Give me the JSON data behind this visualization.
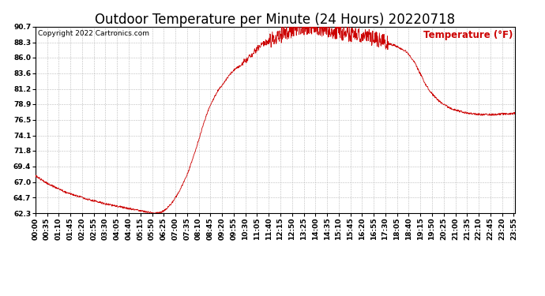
{
  "title": "Outdoor Temperature per Minute (24 Hours) 20220718",
  "copyright_text": "Copyright 2022 Cartronics.com",
  "legend_label": "Temperature (°F)",
  "line_color": "#cc0000",
  "background_color": "#ffffff",
  "plot_bg_color": "#ffffff",
  "grid_color": "#bbbbbb",
  "title_color": "#000000",
  "copyright_color": "#000000",
  "legend_color": "#cc0000",
  "ytick_labels": [
    62.3,
    64.7,
    67.0,
    69.4,
    71.8,
    74.1,
    76.5,
    78.9,
    81.2,
    83.6,
    86.0,
    88.3,
    90.7
  ],
  "ylim": [
    62.3,
    90.7
  ],
  "total_minutes": 1440,
  "xtick_interval": 35,
  "title_fontsize": 12,
  "tick_fontsize": 6.5,
  "legend_fontsize": 8.5,
  "copyright_fontsize": 6.5,
  "keypoints": [
    [
      0,
      68.0
    ],
    [
      30,
      67.0
    ],
    [
      60,
      66.2
    ],
    [
      90,
      65.5
    ],
    [
      120,
      65.0
    ],
    [
      150,
      64.5
    ],
    [
      180,
      64.1
    ],
    [
      210,
      63.7
    ],
    [
      240,
      63.4
    ],
    [
      270,
      63.1
    ],
    [
      300,
      62.8
    ],
    [
      320,
      62.6
    ],
    [
      340,
      62.4
    ],
    [
      350,
      62.35
    ],
    [
      360,
      62.3
    ],
    [
      365,
      62.3
    ],
    [
      370,
      62.35
    ],
    [
      380,
      62.5
    ],
    [
      390,
      62.8
    ],
    [
      400,
      63.3
    ],
    [
      415,
      64.2
    ],
    [
      430,
      65.5
    ],
    [
      445,
      67.0
    ],
    [
      460,
      68.8
    ],
    [
      475,
      71.0
    ],
    [
      490,
      73.5
    ],
    [
      505,
      76.0
    ],
    [
      520,
      78.2
    ],
    [
      535,
      79.8
    ],
    [
      550,
      81.2
    ],
    [
      560,
      81.8
    ],
    [
      570,
      82.5
    ],
    [
      580,
      83.2
    ],
    [
      590,
      83.8
    ],
    [
      600,
      84.3
    ],
    [
      610,
      84.6
    ],
    [
      620,
      85.0
    ],
    [
      630,
      85.5
    ],
    [
      640,
      86.0
    ],
    [
      650,
      86.5
    ],
    [
      660,
      87.0
    ],
    [
      670,
      87.5
    ],
    [
      680,
      88.0
    ],
    [
      690,
      88.3
    ],
    [
      700,
      88.5
    ],
    [
      710,
      88.7
    ],
    [
      720,
      89.0
    ],
    [
      730,
      89.2
    ],
    [
      740,
      89.5
    ],
    [
      750,
      89.7
    ],
    [
      760,
      89.9
    ],
    [
      770,
      90.1
    ],
    [
      780,
      90.3
    ],
    [
      790,
      90.5
    ],
    [
      800,
      90.6
    ],
    [
      810,
      90.65
    ],
    [
      820,
      90.7
    ],
    [
      830,
      90.65
    ],
    [
      840,
      90.6
    ],
    [
      850,
      90.5
    ],
    [
      860,
      90.4
    ],
    [
      870,
      90.3
    ],
    [
      880,
      90.2
    ],
    [
      890,
      90.1
    ],
    [
      900,
      90.0
    ],
    [
      920,
      89.8
    ],
    [
      940,
      89.6
    ],
    [
      960,
      89.4
    ],
    [
      980,
      89.3
    ],
    [
      1000,
      89.2
    ],
    [
      1010,
      89.0
    ],
    [
      1020,
      88.9
    ],
    [
      1030,
      88.7
    ],
    [
      1040,
      88.5
    ],
    [
      1050,
      88.3
    ],
    [
      1060,
      88.1
    ],
    [
      1080,
      87.8
    ],
    [
      1100,
      87.3
    ],
    [
      1110,
      87.0
    ],
    [
      1120,
      86.5
    ],
    [
      1130,
      85.8
    ],
    [
      1140,
      85.0
    ],
    [
      1150,
      84.0
    ],
    [
      1160,
      83.0
    ],
    [
      1170,
      82.0
    ],
    [
      1180,
      81.2
    ],
    [
      1190,
      80.5
    ],
    [
      1200,
      79.9
    ],
    [
      1210,
      79.4
    ],
    [
      1220,
      79.0
    ],
    [
      1230,
      78.7
    ],
    [
      1240,
      78.4
    ],
    [
      1260,
      78.0
    ],
    [
      1280,
      77.7
    ],
    [
      1300,
      77.5
    ],
    [
      1320,
      77.4
    ],
    [
      1340,
      77.3
    ],
    [
      1360,
      77.3
    ],
    [
      1380,
      77.3
    ],
    [
      1400,
      77.4
    ],
    [
      1420,
      77.4
    ],
    [
      1435,
      77.5
    ]
  ]
}
